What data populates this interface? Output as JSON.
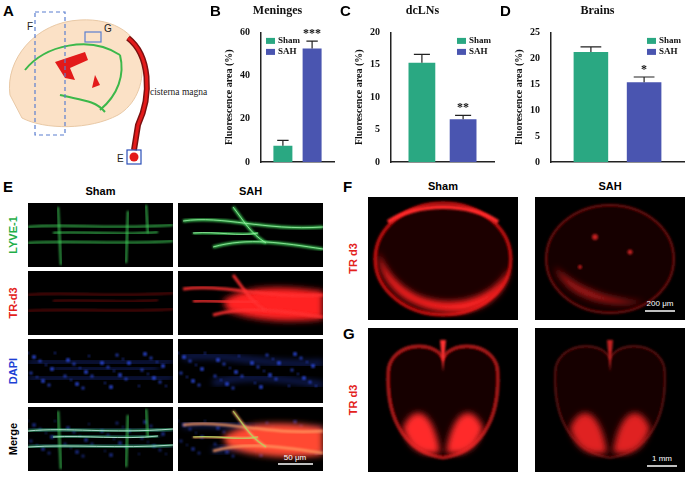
{
  "figure_panels": {
    "A": {
      "letter": "A",
      "region_labels": [
        "F",
        "G",
        "E"
      ],
      "annotation": "cisterna magna"
    },
    "E": {
      "letter": "E",
      "columns": [
        "Sham",
        "SAH"
      ],
      "rows": [
        {
          "label": "LYVE-1",
          "color": "#1fae48"
        },
        {
          "label": "TR-d3",
          "color": "#e3221c"
        },
        {
          "label": "DAPI",
          "color": "#1d3fd4"
        },
        {
          "label": "Merge",
          "color": "#000000"
        }
      ],
      "scale_bar": "50 μm"
    },
    "F": {
      "letter": "F",
      "columns": [
        "Sham",
        "SAH"
      ],
      "row": {
        "label": "TR d3",
        "color": "#e3221c"
      },
      "scale_bar": "200 μm"
    },
    "G": {
      "letter": "G",
      "row": {
        "label": "TR d3",
        "color": "#e3221c"
      },
      "scale_bar": "1 mm"
    }
  },
  "chart_data": [
    {
      "panel": "B",
      "type": "bar",
      "title": "Meninges",
      "y_label": "Fluorescence area (%)",
      "categories": [
        null
      ],
      "series": [
        {
          "name": "Sham",
          "color": "#2aa882",
          "values": [
            7.5
          ],
          "errors": [
            2.5
          ]
        },
        {
          "name": "SAH",
          "color": "#4a55b0",
          "values": [
            52.5
          ],
          "errors": [
            3.5
          ],
          "annotation": "***"
        }
      ],
      "ylim": [
        0,
        60
      ],
      "yticks": [
        0,
        20,
        40,
        60
      ],
      "grid": false,
      "legend": "top-left",
      "tick_labels": "y"
    },
    {
      "panel": "C",
      "type": "bar",
      "title": "dcLNs",
      "y_label": "Fluorescence area (%)",
      "categories": [
        null
      ],
      "series": [
        {
          "name": "Sham",
          "color": "#2aa882",
          "values": [
            15.3
          ],
          "errors": [
            1.3
          ]
        },
        {
          "name": "SAH",
          "color": "#4a55b0",
          "values": [
            6.6
          ],
          "errors": [
            0.6
          ],
          "annotation": "**"
        }
      ],
      "ylim": [
        0,
        20
      ],
      "yticks": [
        0,
        5,
        10,
        15,
        20
      ],
      "grid": false,
      "legend": "top-right",
      "tick_labels": "y"
    },
    {
      "panel": "D",
      "type": "bar",
      "title": "Brains",
      "y_label": "Fluorescence area (%)",
      "categories": [
        null
      ],
      "series": [
        {
          "name": "Sham",
          "color": "#2aa882",
          "values": [
            21.2
          ],
          "errors": [
            1.0
          ]
        },
        {
          "name": "SAH",
          "color": "#4a55b0",
          "values": [
            15.4
          ],
          "errors": [
            1.0
          ],
          "annotation": "*"
        }
      ],
      "ylim": [
        0,
        25
      ],
      "yticks": [
        0,
        5,
        10,
        15,
        20,
        25
      ],
      "grid": false,
      "legend": "top-right",
      "tick_labels": "y"
    }
  ]
}
